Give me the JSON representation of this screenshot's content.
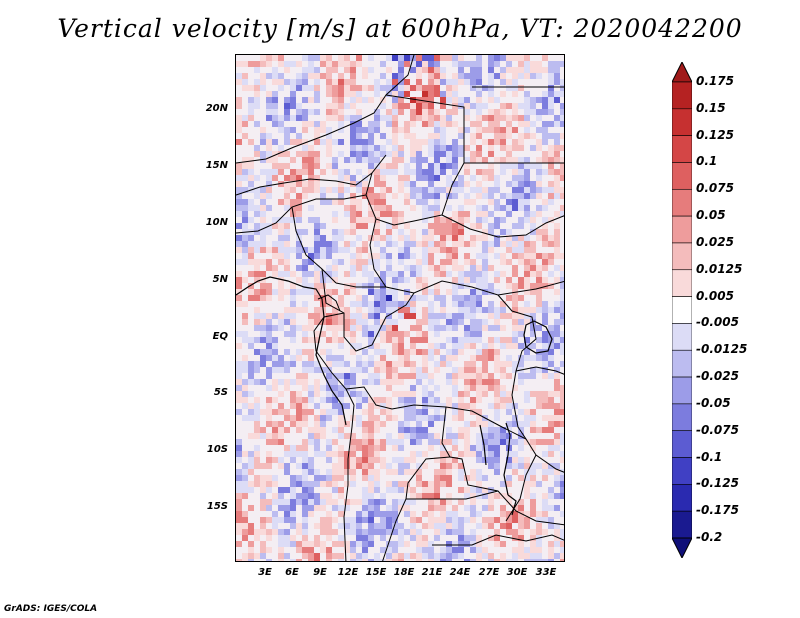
{
  "title": "Vertical velocity [m/s] at 600hPa, VT: 2020042200",
  "footer": "GrADS: IGES/COLA",
  "lat_ticks": [
    "20N",
    "15N",
    "10N",
    "5N",
    "EQ",
    "5S",
    "10S",
    "15S"
  ],
  "lon_ticks": [
    "3E",
    "6E",
    "9E",
    "12E",
    "15E",
    "18E",
    "21E",
    "24E",
    "27E",
    "30E",
    "33E"
  ],
  "colorbar": {
    "labels": [
      "0.175",
      "0.15",
      "0.125",
      "0.1",
      "0.075",
      "0.05",
      "0.025",
      "0.0125",
      "0.005",
      "-0.005",
      "-0.0125",
      "-0.025",
      "-0.05",
      "-0.075",
      "-0.1",
      "-0.125",
      "-0.175",
      "-0.2"
    ],
    "colors": [
      "#a01a1a",
      "#b52222",
      "#c63030",
      "#d44646",
      "#de6060",
      "#e67c7c",
      "#ee9c9c",
      "#f4bcbc",
      "#f9dada",
      "#ffffff",
      "#dcdcf6",
      "#bcbcf0",
      "#9c9ce8",
      "#7c7cde",
      "#5c5cd2",
      "#4040c4",
      "#2a2ab0",
      "#1a1a90",
      "#0f0f78"
    ]
  }
}
